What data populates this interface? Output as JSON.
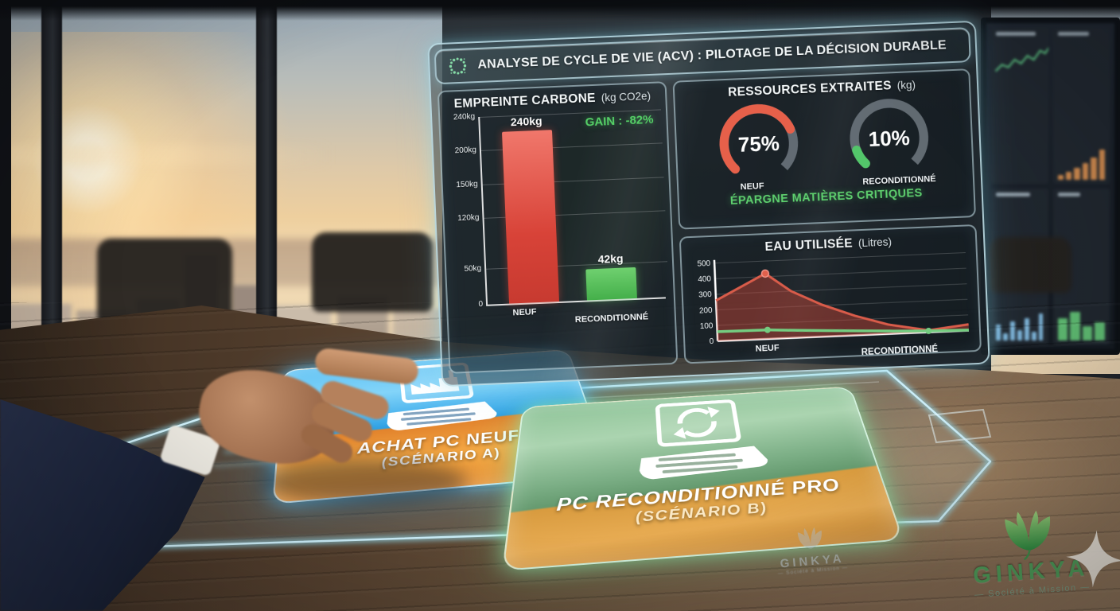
{
  "dashboard": {
    "title": "ANALYSE DE CYCLE DE VIE (ACV) : PILOTAGE DE LA DÉCISION DURABLE",
    "title_icon": "eco-dotted-circle-icon",
    "carbon": {
      "title": "EMPREINTE CARBONE",
      "unit": "(kg CO2e)",
      "gain": "GAIN : -82%",
      "y_ticks": [
        "240kg",
        "200kg",
        "150kg",
        "120kg",
        "50kg",
        "0"
      ],
      "bars": [
        {
          "label": "NEUF",
          "value": "240kg"
        },
        {
          "label": "RECONDITIONNÉ",
          "value": "42kg"
        }
      ]
    },
    "resources": {
      "title": "RESSOURCES EXTRAITES",
      "unit": "(kg)",
      "gauges": [
        {
          "value": "75%",
          "label": "NEUF"
        },
        {
          "value": "10%",
          "label": "RECONDITIONNÉ"
        }
      ],
      "note": "ÉPARGNE MATIÈRES CRITIQUES"
    },
    "water": {
      "title": "EAU UTILISÉE",
      "unit": "(Litres)",
      "y_ticks": [
        "500",
        "400",
        "300",
        "200",
        "100",
        "0"
      ],
      "x_labels": [
        "NEUF",
        "RECONDITIONNÉ"
      ]
    }
  },
  "tiles": {
    "new_pc": {
      "line1": "ACHAT PC NEUF",
      "line2": "(SCÉNARIO A)",
      "icon": "laptop-factory-icon"
    },
    "refurb_pc": {
      "line1": "PC RECONDITIONNÉ PRO",
      "line2": "(SCÉNARIO B)",
      "icon": "laptop-recycle-icon"
    }
  },
  "branding": {
    "logo_name": "GINKYA",
    "logo_tagline": "— Société à Mission —",
    "watermark_name": "GINKYA",
    "watermark_tagline": "— Société à Mission —"
  },
  "colors": {
    "accent_cyan": "#bfeef8",
    "bar_red": "#d84338",
    "bar_green": "#4fbc55",
    "gain_green": "#55d066",
    "gauge_red": "#e6604a",
    "gauge_green": "#53c66a",
    "gauge_track": "#66707a",
    "water_red": "#d95c4a",
    "water_green": "#74cc80"
  },
  "chart_data": [
    {
      "type": "bar",
      "title": "EMPREINTE CARBONE (kg CO2e)",
      "categories": [
        "NEUF",
        "RECONDITIONNÉ"
      ],
      "values": [
        240,
        42
      ],
      "unit": "kg",
      "annotation": "GAIN : -82%",
      "y_tick_labels": [
        "240kg",
        "200kg",
        "150kg",
        "120kg",
        "50kg",
        "0"
      ],
      "bar_colors": [
        "#d84338",
        "#4fbc55"
      ]
    },
    {
      "type": "gauge",
      "title": "RESSOURCES EXTRAITES (kg)",
      "series": [
        {
          "name": "NEUF",
          "value": 75,
          "color": "#e6604a"
        },
        {
          "name": "RECONDITIONNÉ",
          "value": 10,
          "color": "#53c66a"
        }
      ],
      "unit": "%",
      "annotation": "ÉPARGNE MATIÈRES CRITIQUES"
    },
    {
      "type": "area",
      "title": "EAU UTILISÉE (Litres)",
      "x_labels": [
        "NEUF",
        "RECONDITIONNÉ"
      ],
      "ylim": [
        0,
        500
      ],
      "y_ticks": [
        500,
        400,
        300,
        200,
        100,
        0
      ],
      "series": [
        {
          "name": "red",
          "color": "#d95c4a",
          "points": [
            {
              "x": 0,
              "v": 260
            },
            {
              "x": 0.2,
              "v": 420
            },
            {
              "x": 0.3,
              "v": 300
            },
            {
              "x": 0.42,
              "v": 205
            },
            {
              "x": 0.55,
              "v": 125
            },
            {
              "x": 0.68,
              "v": 60
            },
            {
              "x": 0.84,
              "v": 12
            },
            {
              "x": 1,
              "v": 40
            }
          ]
        },
        {
          "name": "green",
          "color": "#74cc80",
          "points": [
            {
              "x": 0,
              "v": 60
            },
            {
              "x": 0.2,
              "v": 58
            },
            {
              "x": 0.32,
              "v": 47
            },
            {
              "x": 0.45,
              "v": 36
            },
            {
              "x": 0.58,
              "v": 26
            },
            {
              "x": 0.7,
              "v": 17
            },
            {
              "x": 0.84,
              "v": 8
            },
            {
              "x": 1,
              "v": 3
            }
          ]
        }
      ],
      "markers": [
        {
          "series": 0,
          "index": 1
        },
        {
          "series": 1,
          "index": 1
        },
        {
          "series": 1,
          "index": 6
        }
      ]
    }
  ]
}
